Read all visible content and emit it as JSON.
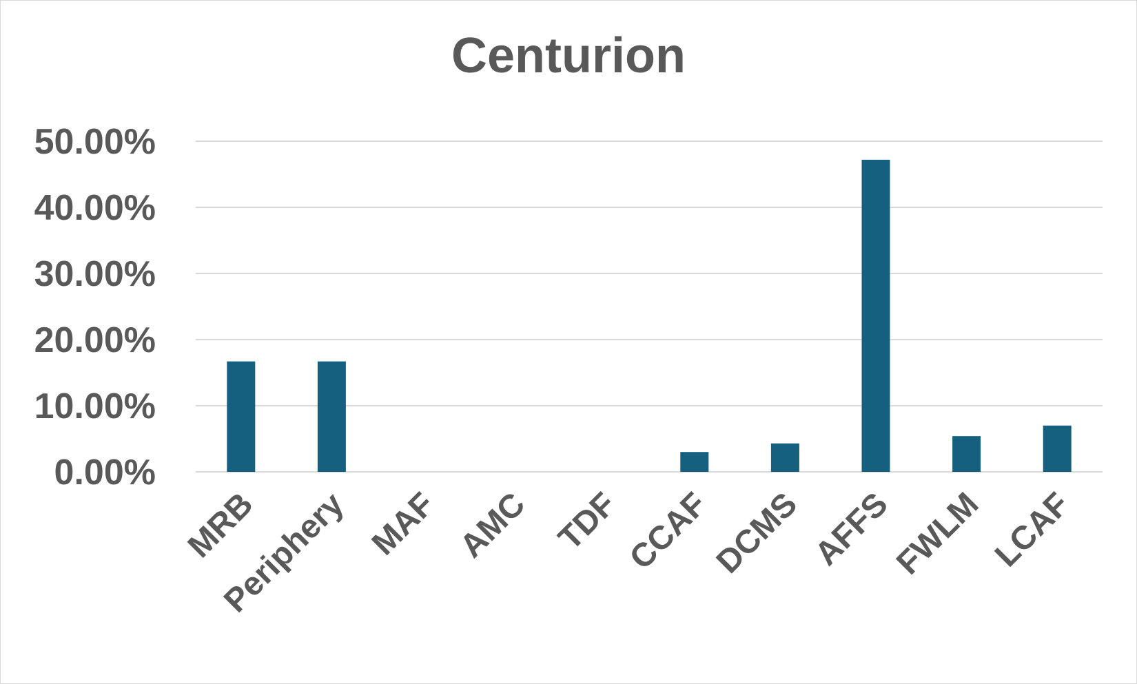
{
  "chart_data": {
    "type": "bar",
    "title": "Centurion",
    "xlabel": "",
    "ylabel": "",
    "categories": [
      "MRB",
      "Periphery",
      "MAF",
      "AMC",
      "TDF",
      "CCAF",
      "DCMS",
      "AFFS",
      "FWLM",
      "LCAF"
    ],
    "values": [
      16.7,
      16.7,
      0,
      0,
      0,
      3.0,
      4.3,
      47.2,
      5.4,
      7.0
    ],
    "ylim": [
      0,
      50
    ],
    "yticks": [
      "0.00%",
      "10.00%",
      "20.00%",
      "30.00%",
      "40.00%",
      "50.00%"
    ],
    "grid": true,
    "legend": "none",
    "bar_color": "#15607f",
    "grid_color": "#d9d9d9"
  }
}
